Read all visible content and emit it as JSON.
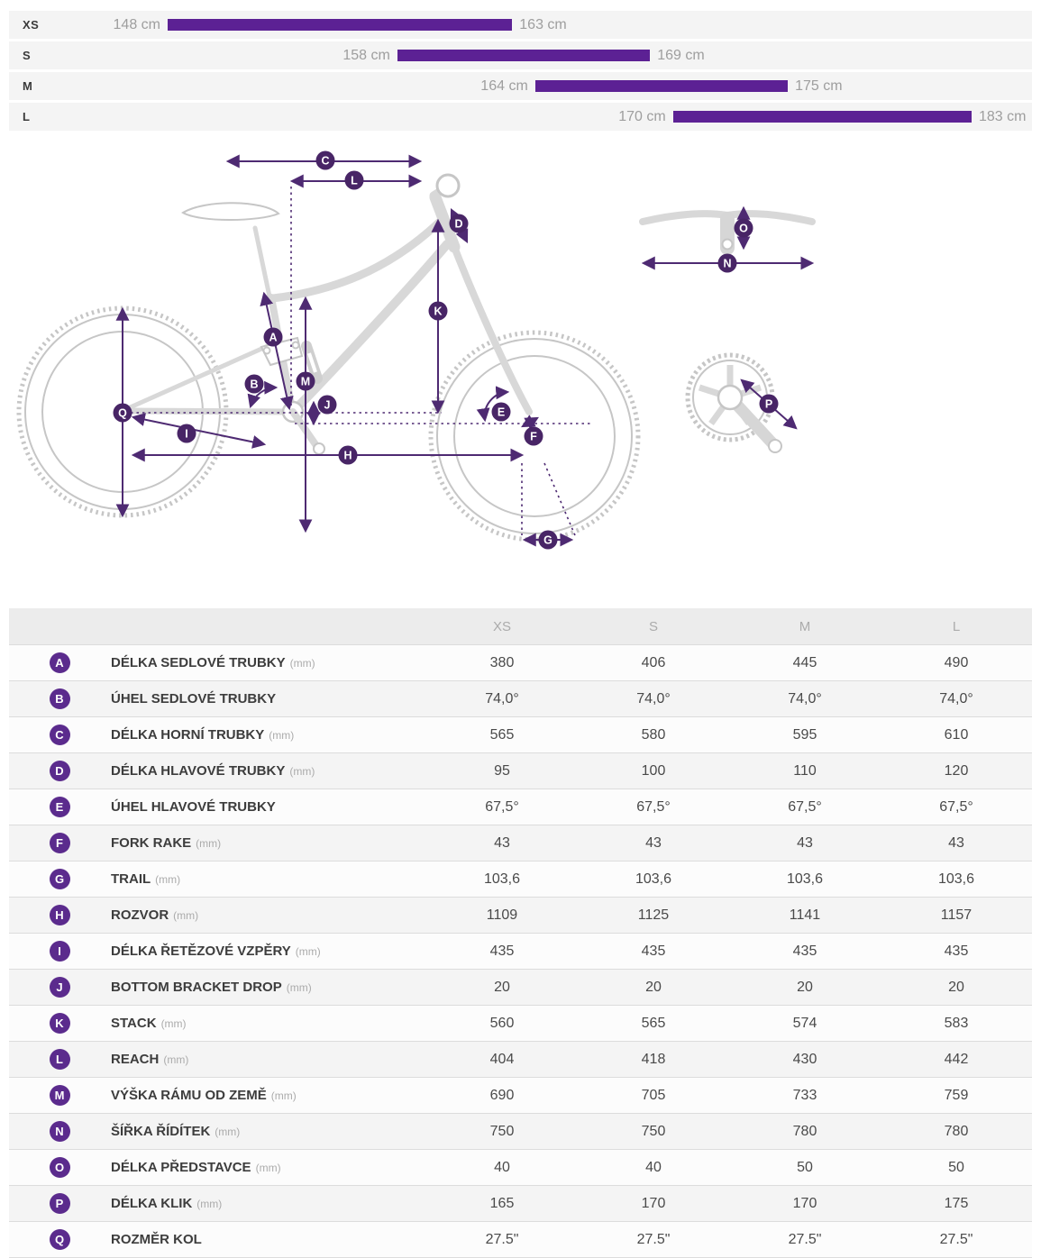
{
  "colors": {
    "bar_purple": "#5c2194",
    "diagram_purple": "#4e2a72",
    "badge_purple": "#5b2b8d",
    "diagram_badge_purple": "#482566"
  },
  "size_chart": {
    "unit": "cm",
    "range_min": 148,
    "range_max": 183,
    "rows": [
      {
        "size": "XS",
        "from": 148,
        "to": 163,
        "from_label": "148 cm",
        "to_label": "163 cm"
      },
      {
        "size": "S",
        "from": 158,
        "to": 169,
        "from_label": "158 cm",
        "to_label": "169 cm"
      },
      {
        "size": "M",
        "from": 164,
        "to": 175,
        "from_label": "164 cm",
        "to_label": "175 cm"
      },
      {
        "size": "L",
        "from": 170,
        "to": 183,
        "from_label": "170 cm",
        "to_label": "183 cm"
      }
    ]
  },
  "chart_data": {
    "type": "bar",
    "title": "Rider height range per frame size",
    "categories": [
      "XS",
      "S",
      "M",
      "L"
    ],
    "series": [
      {
        "name": "rider-height-range-cm",
        "values": [
          [
            148,
            163
          ],
          [
            158,
            169
          ],
          [
            164,
            175
          ],
          [
            170,
            183
          ]
        ]
      }
    ],
    "xlim": [
      148,
      183
    ],
    "unit": "cm",
    "orientation": "horizontal-range"
  },
  "diagram": {
    "letters": {
      "A": "A",
      "B": "B",
      "C": "C",
      "D": "D",
      "E": "E",
      "F": "F",
      "G": "G",
      "H": "H",
      "I": "I",
      "J": "J",
      "K": "K",
      "L": "L",
      "M": "M",
      "N": "N",
      "O": "O",
      "P": "P",
      "Q": "Q"
    }
  },
  "table": {
    "headers": [
      "XS",
      "S",
      "M",
      "L"
    ],
    "rows": [
      {
        "key": "A",
        "label": "DÉLKA SEDLOVÉ TRUBKY",
        "unit": "(mm)",
        "values": [
          "380",
          "406",
          "445",
          "490"
        ]
      },
      {
        "key": "B",
        "label": "ÚHEL SEDLOVÉ TRUBKY",
        "unit": "",
        "values": [
          "74,0°",
          "74,0°",
          "74,0°",
          "74,0°"
        ]
      },
      {
        "key": "C",
        "label": "DÉLKA HORNÍ TRUBKY",
        "unit": "(mm)",
        "values": [
          "565",
          "580",
          "595",
          "610"
        ]
      },
      {
        "key": "D",
        "label": "DÉLKA HLAVOVÉ TRUBKY",
        "unit": "(mm)",
        "values": [
          "95",
          "100",
          "110",
          "120"
        ]
      },
      {
        "key": "E",
        "label": "ÚHEL HLAVOVÉ TRUBKY",
        "unit": "",
        "values": [
          "67,5°",
          "67,5°",
          "67,5°",
          "67,5°"
        ]
      },
      {
        "key": "F",
        "label": "FORK RAKE",
        "unit": "(mm)",
        "values": [
          "43",
          "43",
          "43",
          "43"
        ]
      },
      {
        "key": "G",
        "label": "TRAIL",
        "unit": "(mm)",
        "values": [
          "103,6",
          "103,6",
          "103,6",
          "103,6"
        ]
      },
      {
        "key": "H",
        "label": "ROZVOR",
        "unit": "(mm)",
        "values": [
          "1109",
          "1125",
          "1141",
          "1157"
        ]
      },
      {
        "key": "I",
        "label": "DÉLKA ŘETĚZOVÉ VZPĚRY",
        "unit": "(mm)",
        "values": [
          "435",
          "435",
          "435",
          "435"
        ]
      },
      {
        "key": "J",
        "label": "BOTTOM BRACKET DROP",
        "unit": "(mm)",
        "values": [
          "20",
          "20",
          "20",
          "20"
        ]
      },
      {
        "key": "K",
        "label": "STACK",
        "unit": "(mm)",
        "values": [
          "560",
          "565",
          "574",
          "583"
        ]
      },
      {
        "key": "L",
        "label": "REACH",
        "unit": "(mm)",
        "values": [
          "404",
          "418",
          "430",
          "442"
        ]
      },
      {
        "key": "M",
        "label": "VÝŠKA RÁMU OD ZEMĚ",
        "unit": "(mm)",
        "values": [
          "690",
          "705",
          "733",
          "759"
        ]
      },
      {
        "key": "N",
        "label": "ŠÍŘKA ŘÍDÍTEK",
        "unit": "(mm)",
        "values": [
          "750",
          "750",
          "780",
          "780"
        ]
      },
      {
        "key": "O",
        "label": "DÉLKA PŘEDSTAVCE",
        "unit": "(mm)",
        "values": [
          "40",
          "40",
          "50",
          "50"
        ]
      },
      {
        "key": "P",
        "label": "DÉLKA KLIK",
        "unit": "(mm)",
        "values": [
          "165",
          "170",
          "170",
          "175"
        ]
      },
      {
        "key": "Q",
        "label": "ROZMĚR KOL",
        "unit": "",
        "values": [
          "27.5\"",
          "27.5\"",
          "27.5\"",
          "27.5\""
        ]
      }
    ]
  }
}
